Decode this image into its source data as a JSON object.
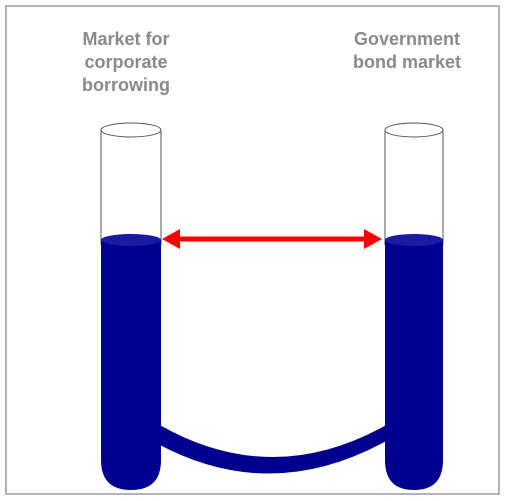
{
  "labels": {
    "left": [
      "Market for",
      "corporate",
      "borrowing"
    ],
    "right": [
      "Government",
      "bond market"
    ]
  }
}
